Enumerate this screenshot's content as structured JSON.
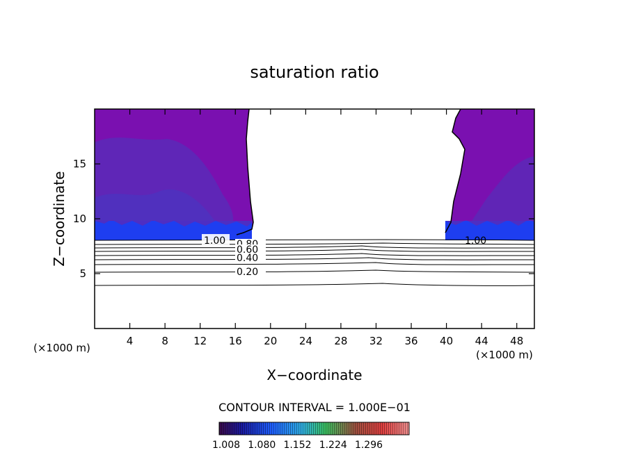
{
  "chart_data": {
    "type": "heatmap",
    "title": "saturation ratio",
    "xlabel": "X−coordinate",
    "ylabel": "Z−coordinate",
    "x_unit_left": "(×1000 m)",
    "x_unit_right": "(×1000 m)",
    "xlim": [
      0,
      50
    ],
    "ylim": [
      0,
      20
    ],
    "xticks": [
      4,
      8,
      12,
      16,
      20,
      24,
      28,
      32,
      36,
      40,
      44,
      48
    ],
    "yticks": [
      5,
      10,
      15
    ],
    "contour_interval_text": "CONTOUR INTERVAL = 1.000E−01",
    "contour_labels": [
      {
        "text": "1.00",
        "x": 13.8,
        "z": 8.1
      },
      {
        "text": "0.80",
        "x": 17.6,
        "z": 7.6
      },
      {
        "text": "0.60",
        "x": 17.6,
        "z": 7.2
      },
      {
        "text": "0.40",
        "x": 17.6,
        "z": 6.4
      },
      {
        "text": "0.20",
        "x": 17.6,
        "z": 5.1
      },
      {
        "text": "1.00",
        "x": 43.4,
        "z": 8.1
      }
    ],
    "colorbar": {
      "tick_labels": [
        "1.008",
        "1.080",
        "1.152",
        "1.224",
        "1.296"
      ],
      "colors": [
        "#2a0a3c",
        "#1b2fd0",
        "#2a90ff",
        "#30c070",
        "#c04030",
        "#e07070"
      ]
    },
    "regions": {
      "fill_color": "#7a10b0",
      "inner_color": "#5a2ab8",
      "band_color": "#1e3ef0",
      "left_cloud_x": [
        0,
        17
      ],
      "right_cloud_x": [
        40,
        50
      ],
      "cloud_base_z": 8.2,
      "cloud_top_z": 20
    },
    "grid": false,
    "legend": "none"
  }
}
